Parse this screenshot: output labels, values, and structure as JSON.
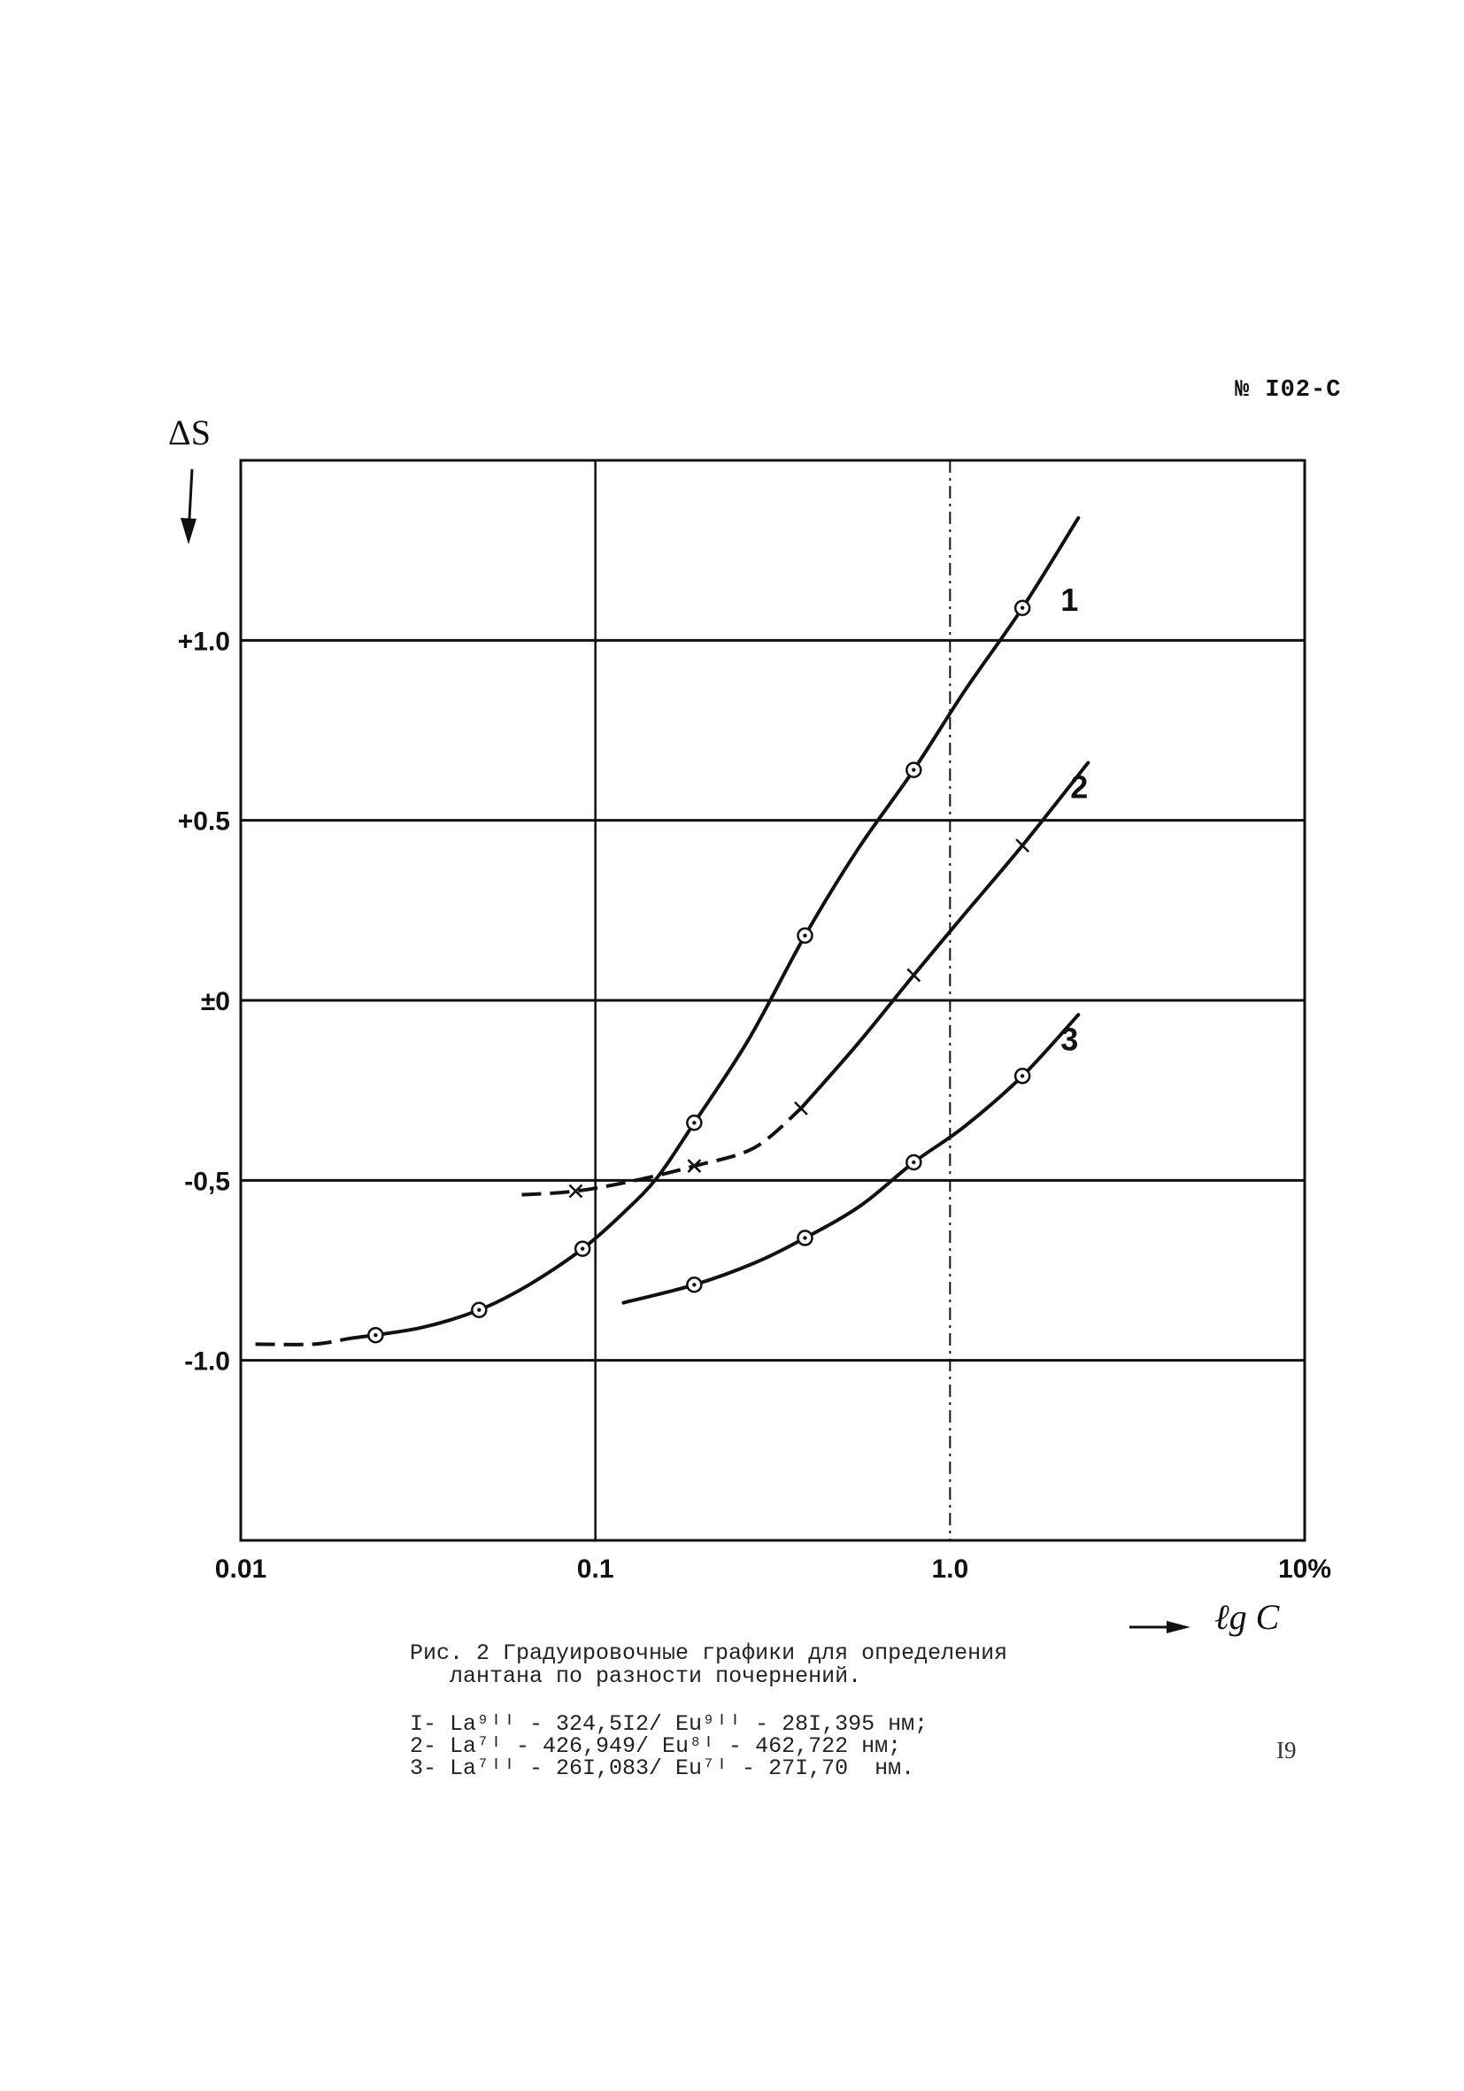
{
  "document": {
    "number": "№ I02-C",
    "page_number": "I9"
  },
  "caption": {
    "line1": "Рис. 2 Градуировочные графики для определения",
    "line2": "лантана по разности почернений."
  },
  "legend_lines": [
    "I- La⁹ᴵᴵ - 324,5I2/ Eu⁹ᴵᴵ - 28I,395 нм;",
    "2- La⁷ᴵ - 426,949/ Eu⁸ᴵ - 462,722 нм;",
    "3- La⁷ᴵᴵ - 26I,083/ Eu⁷ᴵ - 27I,70  нм."
  ],
  "chart_data": {
    "type": "line",
    "xlabel": "ℓg C",
    "ylabel": "ΔS",
    "x_scale": "log",
    "xlim": [
      0.01,
      10
    ],
    "ylim": [
      -1.5,
      1.5
    ],
    "x_ticks": [
      0.01,
      0.1,
      1.0,
      10
    ],
    "x_tick_labels": [
      "0.01",
      "0.1",
      "1.0",
      "10%"
    ],
    "y_ticks": [
      1.0,
      0.5,
      0,
      -0.5,
      -1.0
    ],
    "y_tick_labels": [
      "+1.0",
      "+0.5",
      "±0",
      "-0,5",
      "-1.0"
    ],
    "grid": true,
    "series": [
      {
        "name": "1",
        "marker": "circle-dot",
        "points": [
          [
            0.024,
            -0.93
          ],
          [
            0.047,
            -0.86
          ],
          [
            0.092,
            -0.69
          ],
          [
            0.19,
            -0.34
          ],
          [
            0.39,
            0.18
          ],
          [
            0.79,
            0.64
          ],
          [
            1.6,
            1.09
          ]
        ],
        "curve": [
          [
            0.02,
            -0.94
          ],
          [
            0.032,
            -0.91
          ],
          [
            0.047,
            -0.86
          ],
          [
            0.065,
            -0.79
          ],
          [
            0.092,
            -0.69
          ],
          [
            0.12,
            -0.59
          ],
          [
            0.15,
            -0.49
          ],
          [
            0.19,
            -0.34
          ],
          [
            0.27,
            -0.11
          ],
          [
            0.39,
            0.18
          ],
          [
            0.55,
            0.42
          ],
          [
            0.79,
            0.64
          ],
          [
            1.1,
            0.86
          ],
          [
            1.6,
            1.09
          ],
          [
            2.3,
            1.34
          ]
        ],
        "dashed_tail": [
          [
            0.011,
            -0.955
          ],
          [
            0.016,
            -0.955
          ],
          [
            0.02,
            -0.94
          ]
        ]
      },
      {
        "name": "2",
        "marker": "x",
        "points": [
          [
            0.088,
            -0.53
          ],
          [
            0.19,
            -0.46
          ],
          [
            0.38,
            -0.3
          ],
          [
            0.79,
            0.07
          ],
          [
            1.6,
            0.43
          ]
        ],
        "curve": [
          [
            0.38,
            -0.3
          ],
          [
            0.55,
            -0.12
          ],
          [
            0.79,
            0.07
          ],
          [
            1.1,
            0.24
          ],
          [
            1.6,
            0.43
          ],
          [
            2.45,
            0.66
          ]
        ],
        "dashed_tail": [
          [
            0.062,
            -0.54
          ],
          [
            0.088,
            -0.53
          ],
          [
            0.13,
            -0.5
          ],
          [
            0.19,
            -0.46
          ],
          [
            0.28,
            -0.41
          ],
          [
            0.38,
            -0.3
          ]
        ]
      },
      {
        "name": "3",
        "marker": "circle-dot",
        "points": [
          [
            0.19,
            -0.79
          ],
          [
            0.39,
            -0.66
          ],
          [
            0.79,
            -0.45
          ],
          [
            1.6,
            -0.21
          ]
        ],
        "curve": [
          [
            0.12,
            -0.84
          ],
          [
            0.19,
            -0.79
          ],
          [
            0.28,
            -0.73
          ],
          [
            0.39,
            -0.66
          ],
          [
            0.56,
            -0.57
          ],
          [
            0.79,
            -0.45
          ],
          [
            1.1,
            -0.35
          ],
          [
            1.6,
            -0.21
          ],
          [
            2.3,
            -0.04
          ]
        ],
        "dashed_tail": []
      }
    ]
  }
}
